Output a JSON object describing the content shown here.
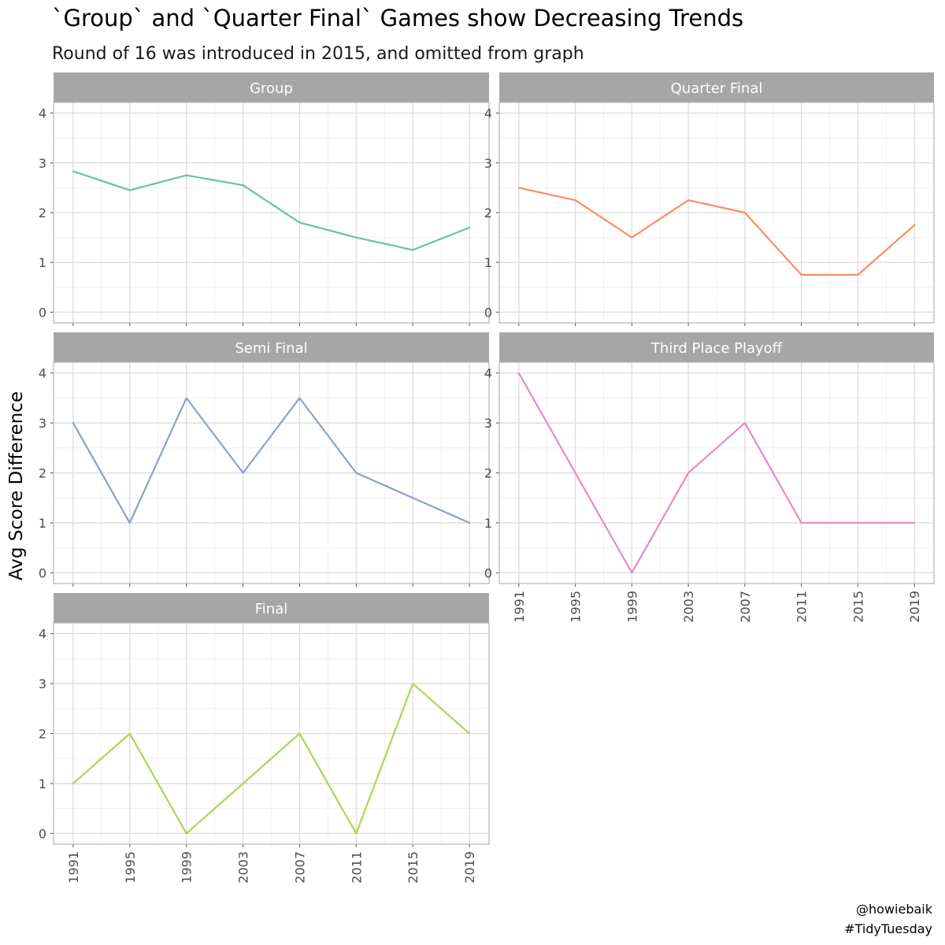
{
  "title": "`Group` and `Quarter Final` Games show Decreasing Trends",
  "subtitle": "Round of 16 was introduced in 2015, and omitted from graph",
  "caption": [
    "@howiebaik",
    "#TidyTuesday"
  ],
  "chart_data": {
    "type": "line",
    "faceted": true,
    "xlabel": "",
    "ylabel": "Avg Score Difference",
    "x": [
      1991,
      1995,
      1999,
      2003,
      2007,
      2011,
      2015,
      2019
    ],
    "ylim": [
      0,
      4
    ],
    "yticks": [
      0,
      1,
      2,
      3,
      4
    ],
    "grid": true,
    "legend": "none",
    "panels": [
      {
        "name": "Group",
        "color": "#66c2a5",
        "values": [
          2.83,
          2.45,
          2.75,
          2.55,
          1.8,
          1.5,
          1.25,
          1.7
        ]
      },
      {
        "name": "Quarter Final",
        "color": "#fc8d62",
        "values": [
          2.5,
          2.25,
          1.5,
          2.25,
          2.0,
          0.75,
          0.75,
          1.75
        ]
      },
      {
        "name": "Semi Final",
        "color": "#8da0cb",
        "values": [
          3.0,
          1.0,
          3.5,
          2.0,
          3.5,
          2.0,
          1.5,
          1.0
        ]
      },
      {
        "name": "Third Place Playoff",
        "color": "#e78ac3",
        "values": [
          4.0,
          2.0,
          0.0,
          2.0,
          3.0,
          1.0,
          1.0,
          1.0
        ]
      },
      {
        "name": "Final",
        "color": "#a6d854",
        "values": [
          1.0,
          2.0,
          0.0,
          1.0,
          2.0,
          0.0,
          3.0,
          2.0
        ]
      }
    ]
  }
}
